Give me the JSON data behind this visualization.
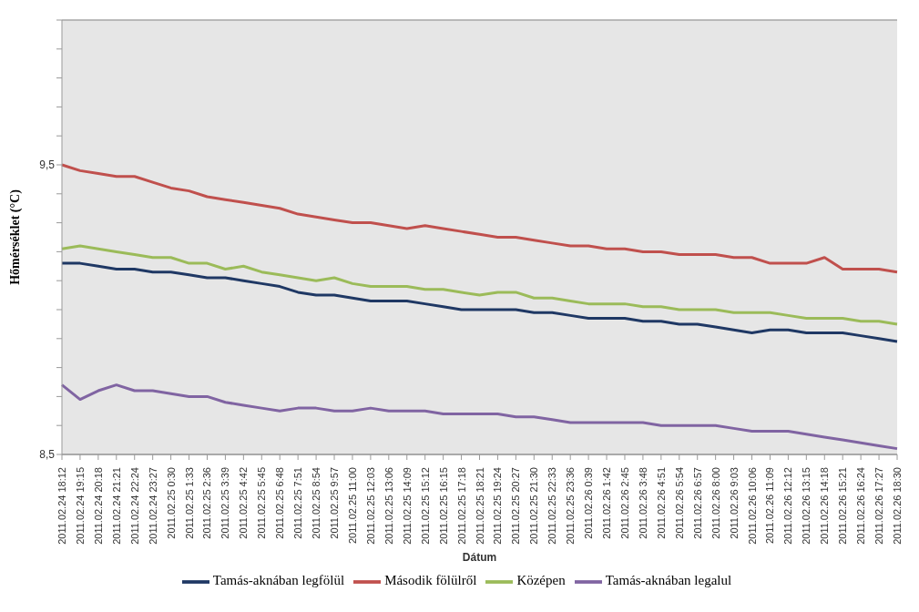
{
  "chart_data": {
    "type": "line",
    "xlabel": "Dátum",
    "ylabel": "Hőmérséklet  (°C)",
    "categories": [
      "2011.02.24 18:12",
      "2011.02.24 19:15",
      "2011.02.24 20:18",
      "2011.02.24 21:21",
      "2011.02.24 22:24",
      "2011.02.24 23:27",
      "2011.02.25 0:30",
      "2011.02.25 1:33",
      "2011.02.25 2:36",
      "2011.02.25 3:39",
      "2011.02.25 4:42",
      "2011.02.25 5:45",
      "2011.02.25 6:48",
      "2011.02.25 7:51",
      "2011.02.25 8:54",
      "2011.02.25 9:57",
      "2011.02.25 11:00",
      "2011.02.25 12:03",
      "2011.02.25 13:06",
      "2011.02.25 14:09",
      "2011.02.25 15:12",
      "2011.02.25 16:15",
      "2011.02.25 17:18",
      "2011.02.25 18:21",
      "2011.02.25 19:24",
      "2011.02.25 20:27",
      "2011.02.25 21:30",
      "2011.02.25 22:33",
      "2011.02.25 23:36",
      "2011.02.26 0:39",
      "2011.02.26 1:42",
      "2011.02.26 2:45",
      "2011.02.26 3:48",
      "2011.02.26 4:51",
      "2011.02.26 5:54",
      "2011.02.26 6:57",
      "2011.02.26 8:00",
      "2011.02.26 9:03",
      "2011.02.26 10:06",
      "2011.02.26 11:09",
      "2011.02.26 12:12",
      "2011.02.26 13:15",
      "2011.02.26 14:18",
      "2011.02.26 15:21",
      "2011.02.26 16:24",
      "2011.02.26 17:27",
      "2011.02.26 18:30"
    ],
    "series": [
      {
        "name": "Tamás-aknában legfölül",
        "color": "#1f3864",
        "values": [
          9.16,
          9.16,
          9.15,
          9.14,
          9.14,
          9.13,
          9.13,
          9.12,
          9.11,
          9.11,
          9.1,
          9.09,
          9.08,
          9.06,
          9.05,
          9.05,
          9.04,
          9.03,
          9.03,
          9.03,
          9.02,
          9.01,
          9.0,
          9.0,
          9.0,
          9.0,
          8.99,
          8.99,
          8.98,
          8.97,
          8.97,
          8.97,
          8.96,
          8.96,
          8.95,
          8.95,
          8.94,
          8.93,
          8.92,
          8.93,
          8.93,
          8.92,
          8.92,
          8.92,
          8.91,
          8.9,
          8.89
        ]
      },
      {
        "name": "Második fölülről",
        "color": "#c0504d",
        "values": [
          9.5,
          9.48,
          9.47,
          9.46,
          9.46,
          9.44,
          9.42,
          9.41,
          9.39,
          9.38,
          9.37,
          9.36,
          9.35,
          9.33,
          9.32,
          9.31,
          9.3,
          9.3,
          9.29,
          9.28,
          9.29,
          9.28,
          9.27,
          9.26,
          9.25,
          9.25,
          9.24,
          9.23,
          9.22,
          9.22,
          9.21,
          9.21,
          9.2,
          9.2,
          9.19,
          9.19,
          9.19,
          9.18,
          9.18,
          9.16,
          9.16,
          9.16,
          9.18,
          9.14,
          9.14,
          9.14,
          9.13
        ]
      },
      {
        "name": "Középen",
        "color": "#9bbb59",
        "values": [
          9.21,
          9.22,
          9.21,
          9.2,
          9.19,
          9.18,
          9.18,
          9.16,
          9.16,
          9.14,
          9.15,
          9.13,
          9.12,
          9.11,
          9.1,
          9.11,
          9.09,
          9.08,
          9.08,
          9.08,
          9.07,
          9.07,
          9.06,
          9.05,
          9.06,
          9.06,
          9.04,
          9.04,
          9.03,
          9.02,
          9.02,
          9.02,
          9.01,
          9.01,
          9.0,
          9.0,
          9.0,
          8.99,
          8.99,
          8.99,
          8.98,
          8.97,
          8.97,
          8.97,
          8.96,
          8.96,
          8.95
        ]
      },
      {
        "name": "Tamás-aknában legalul",
        "color": "#8064a2",
        "values": [
          8.74,
          8.69,
          8.72,
          8.74,
          8.72,
          8.72,
          8.71,
          8.7,
          8.7,
          8.68,
          8.67,
          8.66,
          8.65,
          8.66,
          8.66,
          8.65,
          8.65,
          8.66,
          8.65,
          8.65,
          8.65,
          8.64,
          8.64,
          8.64,
          8.64,
          8.63,
          8.63,
          8.62,
          8.61,
          8.61,
          8.61,
          8.61,
          8.61,
          8.6,
          8.6,
          8.6,
          8.6,
          8.59,
          8.58,
          8.58,
          8.58,
          8.57,
          8.56,
          8.55,
          8.54,
          8.53,
          8.52
        ]
      }
    ],
    "ylim": [
      8.5,
      10.0
    ],
    "yticks": [
      {
        "value": 8.5,
        "label": "8,5"
      },
      {
        "value": 8.6,
        "label": null
      },
      {
        "value": 8.7,
        "label": null
      },
      {
        "value": 8.8,
        "label": null
      },
      {
        "value": 8.9,
        "label": null
      },
      {
        "value": 9.0,
        "label": null
      },
      {
        "value": 9.1,
        "label": null
      },
      {
        "value": 9.2,
        "label": null
      },
      {
        "value": 9.3,
        "label": null
      },
      {
        "value": 9.4,
        "label": null
      },
      {
        "value": 9.5,
        "label": "9,5"
      },
      {
        "value": 9.6,
        "label": null
      },
      {
        "value": 9.7,
        "label": null
      },
      {
        "value": 9.8,
        "label": null
      },
      {
        "value": 9.9,
        "label": null
      },
      {
        "value": 10.0,
        "label": null
      }
    ],
    "grid": "y",
    "legend": "bottom",
    "marker": "none",
    "line_style": "solid"
  }
}
